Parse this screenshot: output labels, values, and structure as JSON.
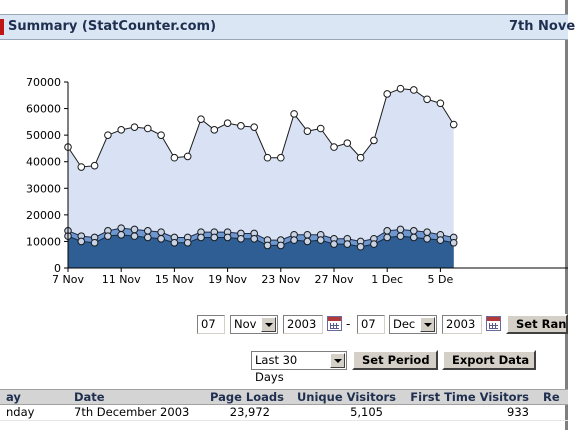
{
  "header": {
    "title": "Summary (StatCounter.com)",
    "date_fragment": "7th Nove"
  },
  "chart_data": {
    "type": "area",
    "x_ticks": [
      "7 Nov",
      "11 Nov",
      "15 Nov",
      "19 Nov",
      "23 Nov",
      "27 Nov",
      "1 Dec",
      "5 De"
    ],
    "y_ticks": [
      "0",
      "10000",
      "20000",
      "30000",
      "40000",
      "50000",
      "60000",
      "70000"
    ],
    "ylim": [
      0,
      70000
    ],
    "colors": {
      "page_loads": "#d8e2f4",
      "unique": "#6e97cf",
      "first_time": "#2f5e94"
    },
    "series": [
      {
        "name": "Page Loads",
        "values": [
          45500,
          38000,
          38500,
          50000,
          52000,
          53000,
          52500,
          50000,
          41500,
          42000,
          56000,
          52000,
          54500,
          53500,
          53000,
          41500,
          41500,
          58000,
          51500,
          52500,
          45500,
          47000,
          41500,
          48000,
          65500,
          67500,
          67000,
          63500,
          62000,
          54000
        ]
      },
      {
        "name": "Unique Visitors",
        "values": [
          14000,
          12000,
          11500,
          14000,
          15000,
          14500,
          14000,
          13500,
          11500,
          11500,
          13500,
          13500,
          13500,
          13000,
          13000,
          10500,
          10500,
          12500,
          12500,
          12500,
          11000,
          11000,
          10000,
          11000,
          14000,
          14500,
          14000,
          13500,
          12500,
          11500
        ]
      },
      {
        "name": "First Time Visitors",
        "values": [
          12000,
          10000,
          9500,
          12000,
          12500,
          12000,
          11500,
          11000,
          9500,
          9500,
          11500,
          11500,
          11500,
          11000,
          11000,
          8500,
          8500,
          10500,
          10000,
          10500,
          9000,
          9000,
          8000,
          9000,
          11500,
          12000,
          11500,
          11000,
          10500,
          9500
        ]
      }
    ]
  },
  "controls": {
    "from_day": "07",
    "from_month": "Nov",
    "from_year": "2003",
    "separator": "-",
    "to_day": "07",
    "to_month": "Dec",
    "to_year": "2003",
    "set_range_label": "Set Ran",
    "period_value": "Last 30 Days",
    "set_period_label": "Set Period",
    "export_label": "Export Data"
  },
  "table": {
    "headers": [
      "ay",
      "Date",
      "Page Loads",
      "Unique Visitors",
      "First Time Visitors",
      "Re"
    ],
    "rows": [
      [
        "nday",
        "7th December 2003",
        "23,972",
        "5,105",
        "933",
        ""
      ]
    ]
  }
}
